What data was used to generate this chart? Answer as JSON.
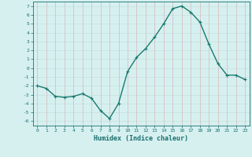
{
  "x": [
    0,
    1,
    2,
    3,
    4,
    5,
    6,
    7,
    8,
    9,
    10,
    11,
    12,
    13,
    14,
    15,
    16,
    17,
    18,
    19,
    20,
    21,
    22,
    23
  ],
  "y": [
    -2.0,
    -2.3,
    -3.2,
    -3.3,
    -3.2,
    -2.9,
    -3.4,
    -4.8,
    -5.7,
    -4.0,
    -0.4,
    1.2,
    2.2,
    3.5,
    5.0,
    6.7,
    7.0,
    6.3,
    5.2,
    2.7,
    0.5,
    -0.8,
    -0.8,
    -1.3
  ],
  "line_color": "#1a7a6e",
  "marker": "+",
  "markersize": 3,
  "linewidth": 1.0,
  "xlabel": "Humidex (Indice chaleur)",
  "xlim": [
    -0.5,
    23.5
  ],
  "ylim": [
    -6.5,
    7.5
  ],
  "yticks": [
    -6,
    -5,
    -4,
    -3,
    -2,
    -1,
    0,
    1,
    2,
    3,
    4,
    5,
    6,
    7
  ],
  "xticks": [
    0,
    1,
    2,
    3,
    4,
    5,
    6,
    7,
    8,
    9,
    10,
    11,
    12,
    13,
    14,
    15,
    16,
    17,
    18,
    19,
    20,
    21,
    22,
    23
  ],
  "bg_color": "#d6f0f0",
  "grid_color_h": "#c8dede",
  "grid_color_v": "#d4b8b8",
  "label_color": "#1a6e6e",
  "xlabel_color": "#1a6e6e"
}
